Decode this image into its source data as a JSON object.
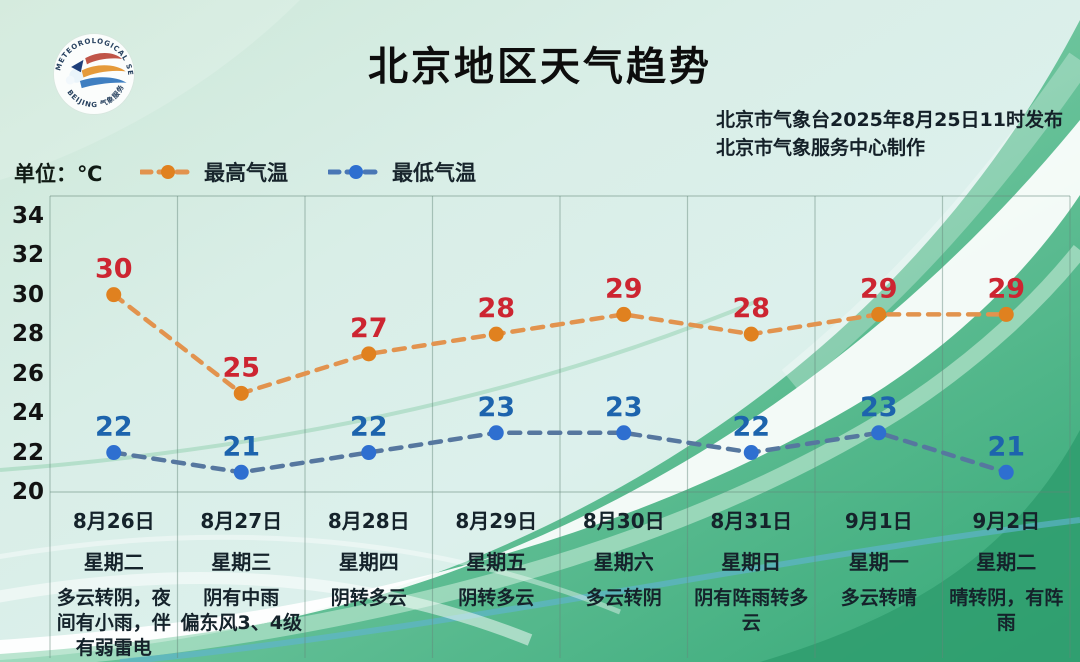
{
  "header": {
    "title": "北京地区天气趋势",
    "issue_line1": "北京市气象台2025年8月25日11时发布",
    "issue_line2": "北京市气象服务中心制作",
    "logo": {
      "arc_text_top": "METEOROLOGICAL SERVICE",
      "arc_text_bottom": "BEIJING 气象服务"
    }
  },
  "unit_label": "单位：℃",
  "legend": [
    {
      "label": "最高气温",
      "line_color": "#e2934e",
      "dot_color": "#e0811f",
      "label_color": "#cd2531"
    },
    {
      "label": "最低气温",
      "line_color": "#56779f",
      "dot_color": "#2e6fd0",
      "label_color": "#1d64ad"
    }
  ],
  "chart_data": {
    "type": "line",
    "title": "北京地区天气趋势",
    "ylabel": "℃",
    "ylim": [
      20,
      35
    ],
    "yticks": [
      34,
      32,
      30,
      28,
      26,
      24,
      22,
      20
    ],
    "grid": "vertical-only",
    "legend_position": "top-left",
    "days": [
      {
        "date": "8月26日",
        "weekday": "星期二",
        "weather": "多云转阴，夜\n间有小雨，伴\n有弱雷电"
      },
      {
        "date": "8月27日",
        "weekday": "星期三",
        "weather": "阴有中雨\n偏东风3、4级"
      },
      {
        "date": "8月28日",
        "weekday": "星期四",
        "weather": "阴转多云"
      },
      {
        "date": "8月29日",
        "weekday": "星期五",
        "weather": "阴转多云"
      },
      {
        "date": "8月30日",
        "weekday": "星期六",
        "weather": "多云转阴"
      },
      {
        "date": "8月31日",
        "weekday": "星期日",
        "weather": "阴有阵雨转多\n云"
      },
      {
        "date": "9月1日",
        "weekday": "星期一",
        "weather": "多云转晴"
      },
      {
        "date": "9月2日",
        "weekday": "星期二",
        "weather": "晴转阴，有阵\n雨"
      }
    ],
    "series": [
      {
        "name": "最高气温",
        "values": [
          30,
          25,
          27,
          28,
          29,
          28,
          29,
          29
        ],
        "line_color": "#e2934e",
        "dot_color": "#e0811f",
        "label_color": "#cd2531"
      },
      {
        "name": "最低气温",
        "values": [
          22,
          21,
          22,
          23,
          23,
          22,
          23,
          21
        ],
        "line_color": "#56779f",
        "dot_color": "#2e6fd0",
        "label_color": "#1d64ad"
      }
    ]
  }
}
